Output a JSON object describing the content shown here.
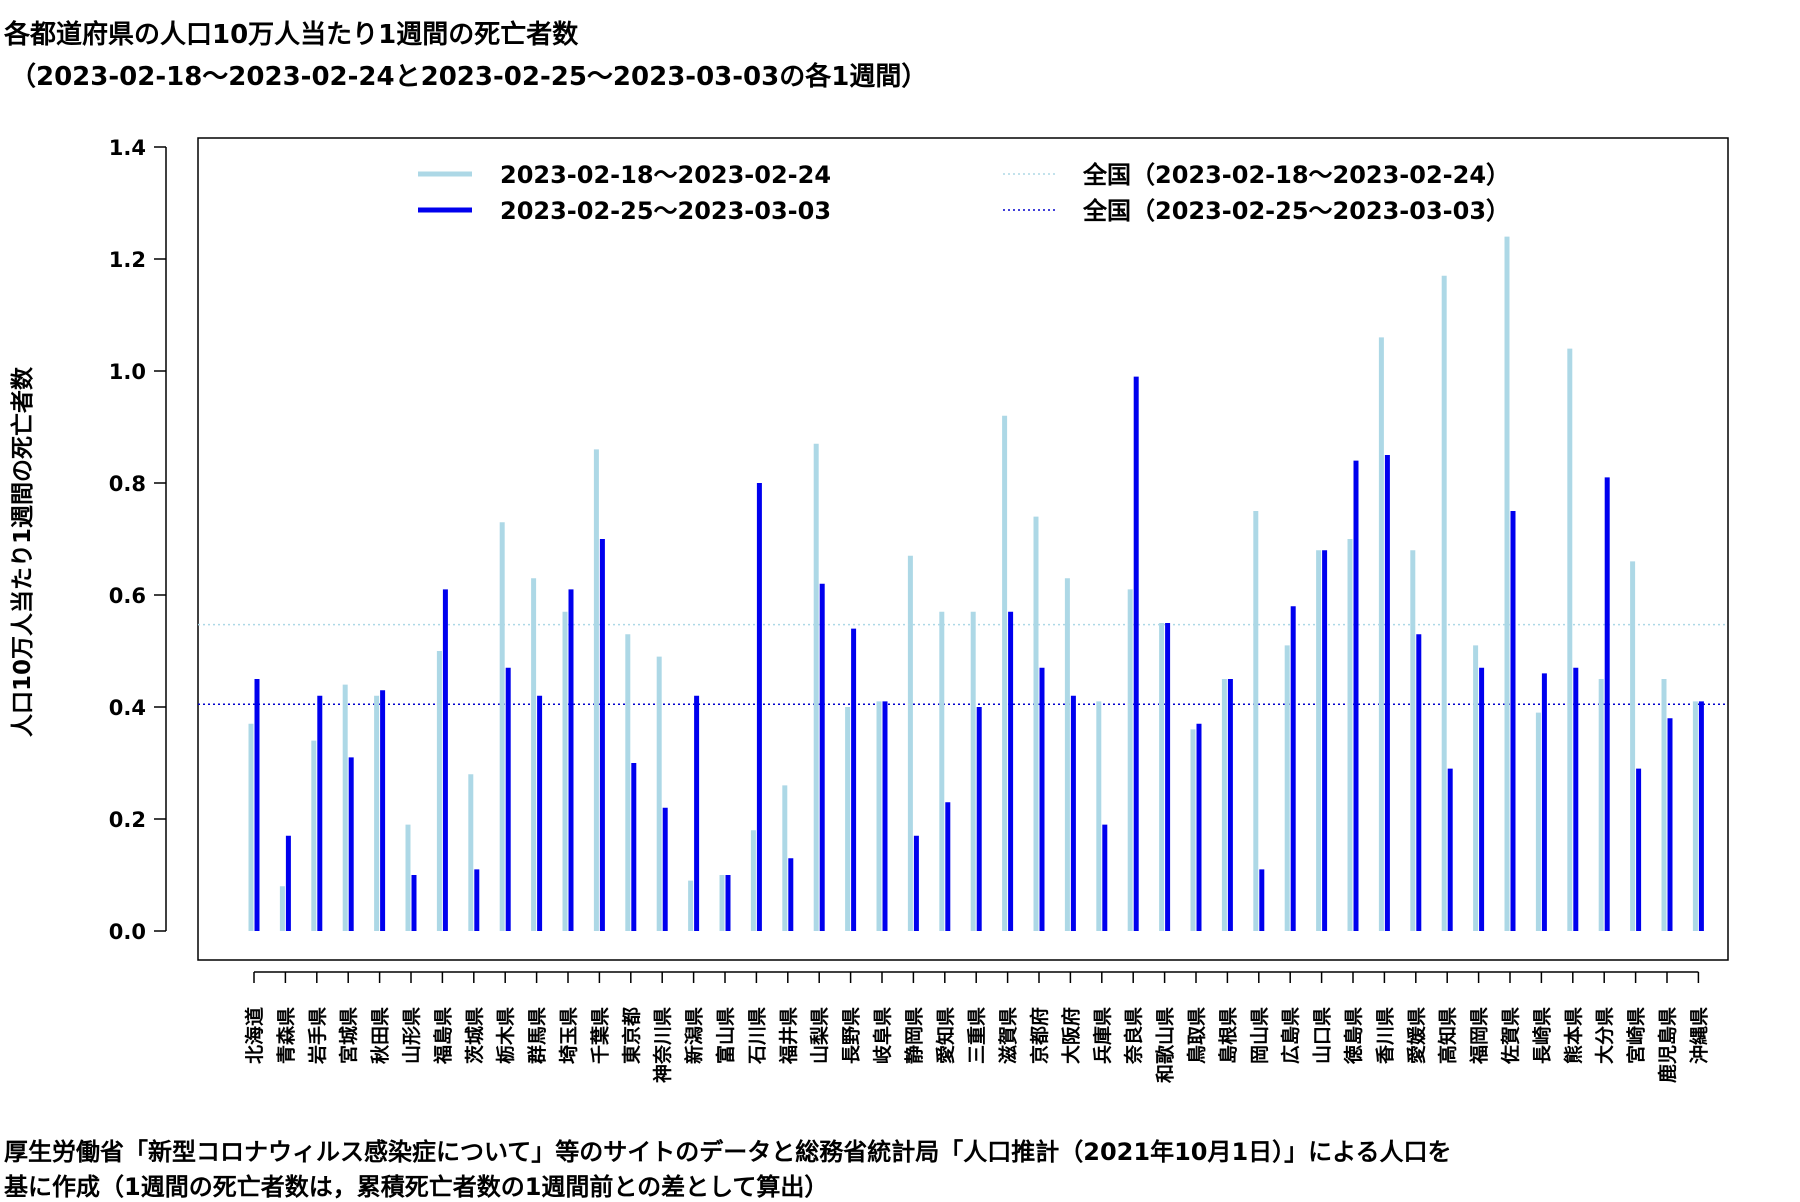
{
  "title": "各都道府県の人口10万人当たり1週間の死亡者数",
  "subtitle": "（2023-02-18～2023-02-24と2023-02-25～2023-03-03の各1週間）",
  "source_line1": "厚生労働省「新型コロナウィルス感染症について」等のサイトのデータと総務省統計局「人口推計（2021年10月1日）」による人口を",
  "source_line2": "基に作成（1週間の死亡者数は，累積死亡者数の1週間前との差として算出）",
  "chart_data": {
    "type": "bar",
    "ylabel": "人口10万人当たり1週間の死亡者数",
    "ylim": [
      0,
      1.4
    ],
    "yticks": [
      "0.0",
      "0.2",
      "0.4",
      "0.6",
      "0.8",
      "1.0",
      "1.2",
      "1.4"
    ],
    "grid": false,
    "legend_position": "top",
    "categories": [
      "北海道",
      "青森県",
      "岩手県",
      "宮城県",
      "秋田県",
      "山形県",
      "福島県",
      "茨城県",
      "栃木県",
      "群馬県",
      "埼玉県",
      "千葉県",
      "東京都",
      "神奈川県",
      "新潟県",
      "富山県",
      "石川県",
      "福井県",
      "山梨県",
      "長野県",
      "岐阜県",
      "静岡県",
      "愛知県",
      "三重県",
      "滋賀県",
      "京都府",
      "大阪府",
      "兵庫県",
      "奈良県",
      "和歌山県",
      "鳥取県",
      "島根県",
      "岡山県",
      "広島県",
      "山口県",
      "徳島県",
      "香川県",
      "愛媛県",
      "高知県",
      "福岡県",
      "佐賀県",
      "長崎県",
      "熊本県",
      "大分県",
      "宮崎県",
      "鹿児島県",
      "沖縄県"
    ],
    "series": [
      {
        "name": "2023-02-18～2023-02-24",
        "color": "#add8e6",
        "values": [
          0.37,
          0.08,
          0.34,
          0.44,
          0.42,
          0.19,
          0.5,
          0.28,
          0.73,
          0.63,
          0.57,
          0.86,
          0.53,
          0.49,
          0.09,
          0.1,
          0.18,
          0.26,
          0.87,
          0.4,
          0.41,
          0.67,
          0.57,
          0.57,
          0.92,
          0.74,
          0.63,
          0.41,
          0.61,
          0.55,
          0.36,
          0.45,
          0.75,
          0.51,
          0.68,
          0.7,
          1.06,
          0.68,
          1.17,
          0.51,
          1.24,
          0.39,
          1.04,
          0.45,
          0.66,
          0.45,
          0.41
        ]
      },
      {
        "name": "2023-02-25～2023-03-03",
        "color": "#0000ee",
        "values": [
          0.45,
          0.17,
          0.42,
          0.31,
          0.43,
          0.1,
          0.61,
          0.11,
          0.47,
          0.42,
          0.61,
          0.7,
          0.3,
          0.22,
          0.42,
          0.1,
          0.8,
          0.13,
          0.62,
          0.54,
          0.41,
          0.17,
          0.23,
          0.4,
          0.57,
          0.47,
          0.42,
          0.19,
          0.99,
          0.55,
          0.37,
          0.45,
          0.11,
          0.58,
          0.68,
          0.84,
          0.85,
          0.53,
          0.29,
          0.47,
          0.75,
          0.46,
          0.47,
          0.81,
          0.29,
          0.38,
          0.41
        ]
      }
    ],
    "reference_lines": [
      {
        "name": "全国（2023-02-18～2023-02-24）",
        "value": 0.547,
        "color": "#add8e6",
        "style": "dotted"
      },
      {
        "name": "全国（2023-02-25～2023-03-03）",
        "value": 0.405,
        "color": "#0000cd",
        "style": "dotted"
      }
    ]
  }
}
